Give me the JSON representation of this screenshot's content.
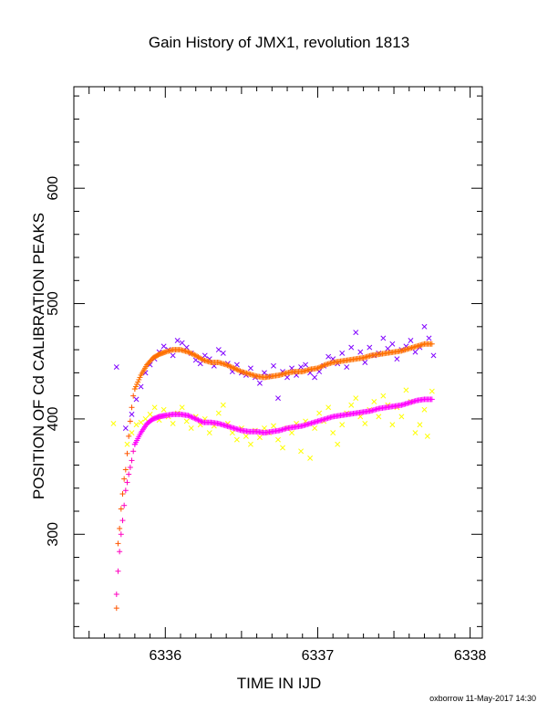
{
  "chart_data": {
    "type": "scatter",
    "title": "Gain History of JMX1, revolution 1813",
    "xlabel": "TIME IN IJD",
    "ylabel": "POSITION OF Cd CALIBRATION PEAKS",
    "xlim": [
      6335.4,
      6338.08
    ],
    "ylim": [
      210,
      688
    ],
    "x_ticks": [
      6336,
      6337,
      6338
    ],
    "y_ticks": [
      300,
      400,
      500,
      600
    ],
    "grid": false,
    "legend": "none",
    "series": [
      {
        "marker": "x",
        "color": "#7f00ff",
        "points": [
          [
            6335.68,
            445
          ],
          [
            6335.74,
            392
          ],
          [
            6335.78,
            404
          ],
          [
            6335.81,
            417
          ],
          [
            6335.84,
            428
          ],
          [
            6335.87,
            440
          ],
          [
            6335.9,
            447
          ],
          [
            6335.93,
            452
          ],
          [
            6335.96,
            458
          ],
          [
            6335.99,
            463
          ],
          [
            6336.02,
            460
          ],
          [
            6336.05,
            455
          ],
          [
            6336.08,
            468
          ],
          [
            6336.11,
            466
          ],
          [
            6336.14,
            462
          ],
          [
            6336.17,
            457
          ],
          [
            6336.2,
            451
          ],
          [
            6336.23,
            448
          ],
          [
            6336.26,
            455
          ],
          [
            6336.29,
            452
          ],
          [
            6336.32,
            446
          ],
          [
            6336.35,
            460
          ],
          [
            6336.38,
            457
          ],
          [
            6336.41,
            448
          ],
          [
            6336.44,
            441
          ],
          [
            6336.47,
            447
          ],
          [
            6336.5,
            440
          ],
          [
            6336.53,
            438
          ],
          [
            6336.56,
            444
          ],
          [
            6336.59,
            436
          ],
          [
            6336.62,
            431
          ],
          [
            6336.65,
            440
          ],
          [
            6336.68,
            437
          ],
          [
            6336.71,
            446
          ],
          [
            6336.74,
            418
          ],
          [
            6336.77,
            441
          ],
          [
            6336.8,
            436
          ],
          [
            6336.83,
            444
          ],
          [
            6336.86,
            438
          ],
          [
            6336.89,
            445
          ],
          [
            6336.92,
            447
          ],
          [
            6336.95,
            440
          ],
          [
            6336.98,
            436
          ],
          [
            6337.01,
            441
          ],
          [
            6337.04,
            446
          ],
          [
            6337.07,
            454
          ],
          [
            6337.1,
            452
          ],
          [
            6337.13,
            448
          ],
          [
            6337.16,
            457
          ],
          [
            6337.19,
            445
          ],
          [
            6337.22,
            462
          ],
          [
            6337.25,
            475
          ],
          [
            6337.28,
            458
          ],
          [
            6337.31,
            449
          ],
          [
            6337.34,
            462
          ],
          [
            6337.37,
            455
          ],
          [
            6337.4,
            457
          ],
          [
            6337.43,
            470
          ],
          [
            6337.46,
            461
          ],
          [
            6337.49,
            465
          ],
          [
            6337.52,
            452
          ],
          [
            6337.55,
            460
          ],
          [
            6337.58,
            463
          ],
          [
            6337.61,
            468
          ],
          [
            6337.64,
            458
          ],
          [
            6337.67,
            462
          ],
          [
            6337.7,
            480
          ],
          [
            6337.73,
            470
          ],
          [
            6337.76,
            455
          ]
        ]
      },
      {
        "marker": "x",
        "color": "#ffff00",
        "points": [
          [
            6335.66,
            396
          ],
          [
            6335.75,
            378
          ],
          [
            6335.78,
            388
          ],
          [
            6335.81,
            395
          ],
          [
            6335.84,
            397
          ],
          [
            6335.87,
            400
          ],
          [
            6335.9,
            404
          ],
          [
            6335.93,
            410
          ],
          [
            6335.96,
            399
          ],
          [
            6335.99,
            408
          ],
          [
            6336.02,
            402
          ],
          [
            6336.05,
            396
          ],
          [
            6336.08,
            405
          ],
          [
            6336.11,
            410
          ],
          [
            6336.14,
            398
          ],
          [
            6336.17,
            392
          ],
          [
            6336.2,
            402
          ],
          [
            6336.23,
            395
          ],
          [
            6336.26,
            400
          ],
          [
            6336.29,
            388
          ],
          [
            6336.32,
            394
          ],
          [
            6336.35,
            405
          ],
          [
            6336.38,
            412
          ],
          [
            6336.41,
            396
          ],
          [
            6336.44,
            388
          ],
          [
            6336.47,
            382
          ],
          [
            6336.5,
            392
          ],
          [
            6336.53,
            385
          ],
          [
            6336.56,
            378
          ],
          [
            6336.59,
            390
          ],
          [
            6336.62,
            384
          ],
          [
            6336.65,
            392
          ],
          [
            6336.68,
            388
          ],
          [
            6336.71,
            394
          ],
          [
            6336.74,
            382
          ],
          [
            6336.77,
            375
          ],
          [
            6336.8,
            392
          ],
          [
            6336.83,
            388
          ],
          [
            6336.86,
            396
          ],
          [
            6336.89,
            372
          ],
          [
            6336.92,
            398
          ],
          [
            6336.95,
            366
          ],
          [
            6336.98,
            392
          ],
          [
            6337.01,
            405
          ],
          [
            6337.04,
            398
          ],
          [
            6337.07,
            410
          ],
          [
            6337.1,
            388
          ],
          [
            6337.13,
            378
          ],
          [
            6337.16,
            395
          ],
          [
            6337.19,
            405
          ],
          [
            6337.22,
            412
          ],
          [
            6337.25,
            418
          ],
          [
            6337.28,
            402
          ],
          [
            6337.31,
            396
          ],
          [
            6337.34,
            408
          ],
          [
            6337.37,
            415
          ],
          [
            6337.4,
            402
          ],
          [
            6337.43,
            420
          ],
          [
            6337.46,
            412
          ],
          [
            6337.49,
            395
          ],
          [
            6337.52,
            410
          ],
          [
            6337.55,
            402
          ],
          [
            6337.58,
            425
          ],
          [
            6337.61,
            415
          ],
          [
            6337.64,
            388
          ],
          [
            6337.67,
            395
          ],
          [
            6337.7,
            408
          ],
          [
            6337.72,
            385
          ],
          [
            6337.75,
            424
          ]
        ]
      },
      {
        "marker": "+",
        "color": "#ff5500",
        "points": [
          [
            6335.68,
            236
          ],
          [
            6335.69,
            292
          ],
          [
            6335.7,
            305
          ],
          [
            6335.71,
            322
          ],
          [
            6335.72,
            335
          ],
          [
            6335.73,
            348
          ],
          [
            6335.74,
            356
          ],
          [
            6335.75,
            370
          ],
          [
            6335.76,
            385
          ],
          [
            6335.77,
            398
          ],
          [
            6335.78,
            410
          ],
          [
            6335.79,
            420
          ],
          [
            6335.8,
            426
          ]
        ]
      },
      {
        "marker": "+",
        "color": "#ff00c0",
        "points": [
          [
            6335.68,
            248
          ],
          [
            6335.69,
            268
          ],
          [
            6335.7,
            285
          ],
          [
            6335.71,
            300
          ],
          [
            6335.72,
            312
          ],
          [
            6335.73,
            325
          ],
          [
            6335.74,
            338
          ],
          [
            6335.75,
            345
          ],
          [
            6335.76,
            352
          ],
          [
            6335.77,
            358
          ],
          [
            6335.78,
            364
          ],
          [
            6335.79,
            372
          ],
          [
            6335.8,
            378
          ]
        ]
      },
      {
        "marker": "+",
        "color": "#ff7000",
        "dense": true,
        "points": [
          [
            6335.8,
            426
          ],
          [
            6335.84,
            438
          ],
          [
            6335.88,
            447
          ],
          [
            6335.92,
            453
          ],
          [
            6335.96,
            456
          ],
          [
            6336.0,
            458
          ],
          [
            6336.05,
            460
          ],
          [
            6336.1,
            460
          ],
          [
            6336.15,
            458
          ],
          [
            6336.2,
            455
          ],
          [
            6336.25,
            451
          ],
          [
            6336.3,
            449
          ],
          [
            6336.35,
            449
          ],
          [
            6336.4,
            447
          ],
          [
            6336.45,
            444
          ],
          [
            6336.5,
            441
          ],
          [
            6336.55,
            439
          ],
          [
            6336.6,
            437
          ],
          [
            6336.65,
            436
          ],
          [
            6336.7,
            437
          ],
          [
            6336.75,
            438
          ],
          [
            6336.8,
            440
          ],
          [
            6336.85,
            441
          ],
          [
            6336.9,
            441
          ],
          [
            6336.95,
            443
          ],
          [
            6337.0,
            444
          ],
          [
            6337.05,
            447
          ],
          [
            6337.1,
            449
          ],
          [
            6337.15,
            450
          ],
          [
            6337.2,
            451
          ],
          [
            6337.25,
            452
          ],
          [
            6337.3,
            453
          ],
          [
            6337.35,
            455
          ],
          [
            6337.4,
            456
          ],
          [
            6337.45,
            457
          ],
          [
            6337.5,
            458
          ],
          [
            6337.55,
            459
          ],
          [
            6337.6,
            461
          ],
          [
            6337.65,
            463
          ],
          [
            6337.7,
            465
          ],
          [
            6337.75,
            465
          ]
        ]
      },
      {
        "marker": "+",
        "color": "#ff00ff",
        "dense": true,
        "points": [
          [
            6335.8,
            378
          ],
          [
            6335.84,
            388
          ],
          [
            6335.88,
            396
          ],
          [
            6335.92,
            400
          ],
          [
            6335.96,
            402
          ],
          [
            6336.0,
            403
          ],
          [
            6336.05,
            404
          ],
          [
            6336.1,
            404
          ],
          [
            6336.15,
            403
          ],
          [
            6336.2,
            400
          ],
          [
            6336.25,
            397
          ],
          [
            6336.3,
            397
          ],
          [
            6336.35,
            396
          ],
          [
            6336.4,
            394
          ],
          [
            6336.45,
            392
          ],
          [
            6336.5,
            390
          ],
          [
            6336.55,
            389
          ],
          [
            6336.6,
            389
          ],
          [
            6336.65,
            388
          ],
          [
            6336.7,
            389
          ],
          [
            6336.75,
            390
          ],
          [
            6336.8,
            392
          ],
          [
            6336.85,
            393
          ],
          [
            6336.9,
            394
          ],
          [
            6336.95,
            396
          ],
          [
            6337.0,
            398
          ],
          [
            6337.05,
            400
          ],
          [
            6337.1,
            402
          ],
          [
            6337.15,
            403
          ],
          [
            6337.2,
            404
          ],
          [
            6337.25,
            405
          ],
          [
            6337.3,
            406
          ],
          [
            6337.35,
            407
          ],
          [
            6337.4,
            409
          ],
          [
            6337.45,
            410
          ],
          [
            6337.5,
            411
          ],
          [
            6337.55,
            412
          ],
          [
            6337.6,
            414
          ],
          [
            6337.65,
            416
          ],
          [
            6337.7,
            417
          ],
          [
            6337.75,
            417
          ]
        ]
      }
    ]
  },
  "footer": "oxborrow 11-May-2017 14:30"
}
